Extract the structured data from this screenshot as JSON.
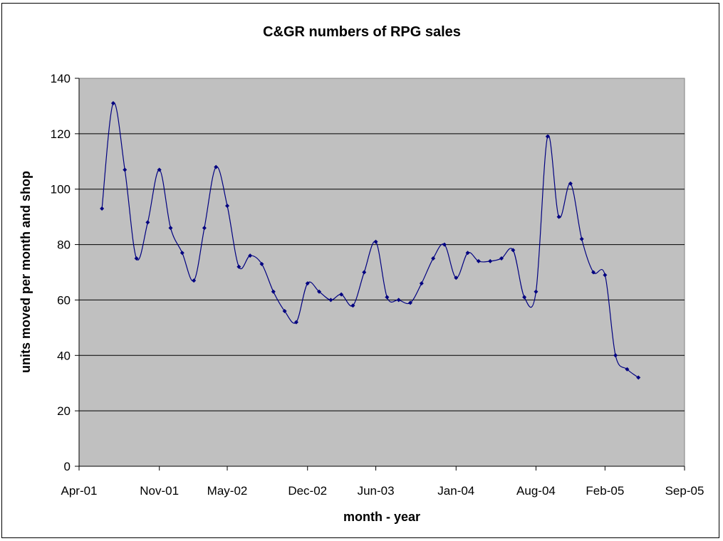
{
  "chart_data": {
    "type": "line",
    "title": "C&GR numbers of RPG sales",
    "xlabel": "month - year",
    "ylabel": "units moved per month and shop",
    "ylim": [
      0,
      140
    ],
    "yticks": [
      0,
      20,
      40,
      60,
      80,
      100,
      120,
      140
    ],
    "xlim": [
      "2001-04-01",
      "2005-09-01"
    ],
    "xticks": [
      {
        "date": "2001-04-01",
        "label": "Apr-01"
      },
      {
        "date": "2001-11-01",
        "label": "Nov-01"
      },
      {
        "date": "2002-05-01",
        "label": "May-02"
      },
      {
        "date": "2002-12-01",
        "label": "Dec-02"
      },
      {
        "date": "2003-06-01",
        "label": "Jun-03"
      },
      {
        "date": "2004-01-01",
        "label": "Jan-04"
      },
      {
        "date": "2004-08-01",
        "label": "Aug-04"
      },
      {
        "date": "2005-02-01",
        "label": "Feb-05"
      },
      {
        "date": "2005-09-01",
        "label": "Sep-05"
      }
    ],
    "grid": "horizontal",
    "plot_background": "#c0c0c0",
    "series": [
      {
        "color": "#000080",
        "marker": "diamond",
        "smooth": true,
        "x": [
          "2001-06-01",
          "2001-07-01",
          "2001-08-01",
          "2001-09-01",
          "2001-10-01",
          "2001-11-01",
          "2001-12-01",
          "2002-01-01",
          "2002-02-01",
          "2002-03-01",
          "2002-04-01",
          "2002-05-01",
          "2002-06-01",
          "2002-07-01",
          "2002-08-01",
          "2002-09-01",
          "2002-10-01",
          "2002-11-01",
          "2002-12-01",
          "2003-01-01",
          "2003-02-01",
          "2003-03-01",
          "2003-04-01",
          "2003-05-01",
          "2003-06-01",
          "2003-07-01",
          "2003-08-01",
          "2003-09-01",
          "2003-10-01",
          "2003-11-01",
          "2003-12-01",
          "2004-01-01",
          "2004-02-01",
          "2004-03-01",
          "2004-04-01",
          "2004-05-01",
          "2004-06-01",
          "2004-07-01",
          "2004-08-01",
          "2004-09-01",
          "2004-10-01",
          "2004-11-01",
          "2004-12-01",
          "2005-01-01",
          "2005-02-01",
          "2005-03-01",
          "2005-04-01",
          "2005-05-01"
        ],
        "values": [
          93,
          131,
          107,
          75,
          88,
          107,
          86,
          77,
          67,
          86,
          108,
          94,
          72,
          76,
          73,
          63,
          56,
          52,
          66,
          63,
          60,
          62,
          58,
          70,
          81,
          61,
          60,
          59,
          66,
          75,
          80,
          68,
          77,
          74,
          74,
          75,
          78,
          61,
          63,
          119,
          90,
          102,
          82,
          70,
          69,
          40,
          35,
          32
        ]
      }
    ]
  }
}
